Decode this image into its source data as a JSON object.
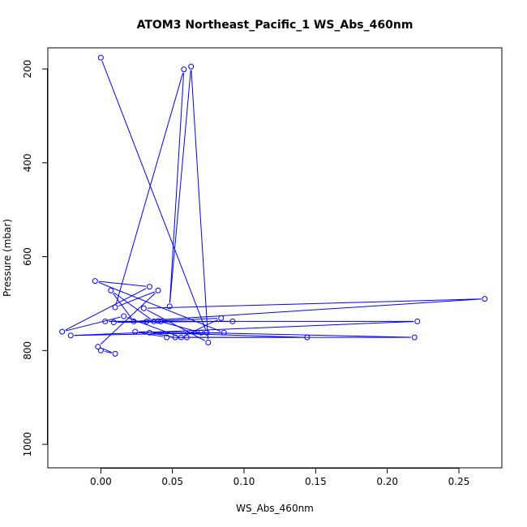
{
  "chart_data": {
    "type": "line",
    "title": "ATOM3 Northeast_Pacific_1 WS_Abs_460nm",
    "xlabel": "WS_Abs_460nm",
    "ylabel": "Pressure (mbar)",
    "xlim": [
      -0.037,
      0.28
    ],
    "ylim": [
      1050,
      155
    ],
    "y_reversed": true,
    "grid": false,
    "legend": "none",
    "series_color": "#0000ff",
    "xticks": [
      0.0,
      0.05,
      0.1,
      0.15,
      0.2,
      0.25
    ],
    "xtick_labels": [
      "0.00",
      "0.05",
      "0.10",
      "0.15",
      "0.20",
      "0.25"
    ],
    "yticks": [
      200,
      400,
      600,
      800,
      1000
    ],
    "ytick_labels": [
      "200",
      "400",
      "600",
      "800",
      "1000"
    ],
    "x": [
      0.0,
      0.01,
      -0.002,
      0.04,
      0.01,
      0.058,
      0.048,
      0.063,
      0.075,
      0.03,
      0.268,
      0.023,
      0.007,
      0.037,
      0.042,
      0.009,
      0.092,
      0.003,
      0.032,
      0.221,
      -0.021,
      0.086,
      -0.004,
      0.034,
      -0.027,
      0.016,
      0.056,
      0.084,
      0.04,
      0.07,
      0.219,
      0.06,
      0.052,
      0.034,
      0.144,
      0.046,
      0.024,
      0.074,
      0.0
    ],
    "y": [
      800,
      807,
      792,
      672,
      708,
      201,
      706,
      195,
      783,
      710,
      690,
      738,
      672,
      738,
      738,
      740,
      738,
      738,
      738,
      738,
      768,
      762,
      652,
      664,
      760,
      727,
      772,
      731,
      737,
      762,
      772,
      772,
      772,
      762,
      772,
      772,
      760,
      762,
      176
    ]
  }
}
